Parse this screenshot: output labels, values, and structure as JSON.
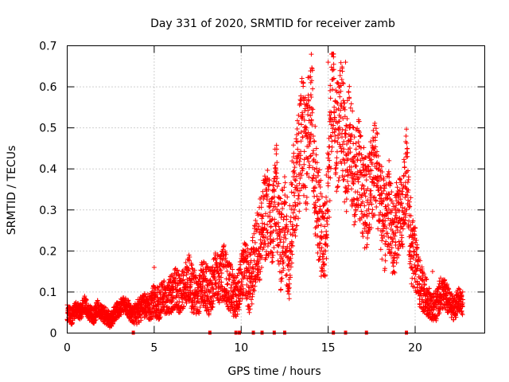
{
  "chart_data": {
    "type": "scatter",
    "title": "Day 331 of 2020, SRMTID for receiver zamb",
    "xlabel": "GPS time / hours",
    "ylabel": "SRMTID / TECUs",
    "xlim": [
      0,
      24
    ],
    "ylim": [
      0,
      0.7
    ],
    "xticks": [
      0,
      5,
      10,
      15,
      20
    ],
    "yticks": [
      0,
      0.1,
      0.2,
      0.3,
      0.4,
      0.5,
      0.6,
      0.7
    ],
    "xtick_labels": [
      "0",
      "5",
      "10",
      "15",
      "20"
    ],
    "ytick_labels": [
      "0",
      "0.1",
      "0.2",
      "0.3",
      "0.4",
      "0.5",
      "0.6",
      "0.7"
    ],
    "grid": true,
    "marker": "+",
    "color": "#ff0000",
    "series": [
      {
        "name": "SRMTID",
        "x": [
          0.0,
          0.25,
          0.5,
          0.75,
          1.0,
          1.25,
          1.5,
          1.75,
          2.0,
          2.25,
          2.5,
          2.75,
          3.0,
          3.25,
          3.5,
          3.75,
          4.0,
          4.25,
          4.5,
          4.75,
          5.0,
          5.25,
          5.5,
          5.75,
          6.0,
          6.25,
          6.5,
          6.75,
          7.0,
          7.25,
          7.5,
          7.75,
          8.0,
          8.25,
          8.5,
          8.75,
          9.0,
          9.25,
          9.5,
          9.75,
          10.0,
          10.25,
          10.5,
          10.75,
          11.0,
          11.25,
          11.5,
          11.75,
          12.0,
          12.25,
          12.5,
          12.75,
          13.0,
          13.25,
          13.5,
          13.75,
          14.0,
          14.25,
          14.5,
          14.75,
          15.0,
          15.25,
          15.5,
          15.75,
          16.0,
          16.25,
          16.5,
          16.75,
          17.0,
          17.25,
          17.5,
          17.75,
          18.0,
          18.25,
          18.5,
          18.75,
          19.0,
          19.25,
          19.5,
          19.75,
          20.0,
          20.25,
          20.5,
          20.75,
          21.0,
          21.25,
          21.5,
          21.75,
          22.0,
          22.25,
          22.5,
          22.75
        ],
        "y": [
          0.05,
          0.04,
          0.06,
          0.05,
          0.07,
          0.05,
          0.04,
          0.06,
          0.05,
          0.04,
          0.03,
          0.05,
          0.06,
          0.07,
          0.06,
          0.04,
          0.05,
          0.06,
          0.07,
          0.06,
          0.08,
          0.07,
          0.09,
          0.08,
          0.1,
          0.11,
          0.09,
          0.12,
          0.13,
          0.1,
          0.09,
          0.12,
          0.11,
          0.1,
          0.14,
          0.13,
          0.15,
          0.12,
          0.1,
          0.09,
          0.13,
          0.16,
          0.11,
          0.18,
          0.22,
          0.26,
          0.3,
          0.24,
          0.36,
          0.21,
          0.28,
          0.19,
          0.34,
          0.4,
          0.5,
          0.43,
          0.58,
          0.37,
          0.28,
          0.22,
          0.33,
          0.62,
          0.47,
          0.55,
          0.4,
          0.5,
          0.36,
          0.42,
          0.34,
          0.3,
          0.38,
          0.41,
          0.32,
          0.25,
          0.3,
          0.22,
          0.29,
          0.27,
          0.4,
          0.2,
          0.18,
          0.12,
          0.1,
          0.08,
          0.06,
          0.07,
          0.1,
          0.09,
          0.07,
          0.06,
          0.08,
          0.07
        ],
        "y_spread": [
          0.02,
          0.02,
          0.02,
          0.02,
          0.02,
          0.02,
          0.02,
          0.02,
          0.02,
          0.02,
          0.02,
          0.02,
          0.02,
          0.02,
          0.02,
          0.02,
          0.03,
          0.03,
          0.03,
          0.03,
          0.04,
          0.04,
          0.04,
          0.04,
          0.05,
          0.05,
          0.05,
          0.05,
          0.06,
          0.06,
          0.05,
          0.06,
          0.06,
          0.06,
          0.06,
          0.06,
          0.07,
          0.06,
          0.06,
          0.05,
          0.06,
          0.07,
          0.08,
          0.08,
          0.1,
          0.11,
          0.11,
          0.11,
          0.12,
          0.12,
          0.12,
          0.12,
          0.13,
          0.14,
          0.14,
          0.14,
          0.15,
          0.14,
          0.12,
          0.12,
          0.13,
          0.15,
          0.14,
          0.14,
          0.13,
          0.13,
          0.12,
          0.12,
          0.12,
          0.12,
          0.12,
          0.12,
          0.12,
          0.11,
          0.1,
          0.1,
          0.1,
          0.1,
          0.1,
          0.09,
          0.08,
          0.06,
          0.05,
          0.04,
          0.03,
          0.04,
          0.04,
          0.04,
          0.03,
          0.03,
          0.03,
          0.03
        ],
        "peak_marks": [
          {
            "x": 1.0,
            "y": 0.09
          },
          {
            "x": 3.5,
            "y": 0.08
          },
          {
            "x": 5.0,
            "y": 0.16
          },
          {
            "x": 7.0,
            "y": 0.19
          },
          {
            "x": 9.0,
            "y": 0.19
          },
          {
            "x": 11.0,
            "y": 0.2
          },
          {
            "x": 12.0,
            "y": 0.39
          },
          {
            "x": 13.5,
            "y": 0.57
          },
          {
            "x": 14.0,
            "y": 0.61
          },
          {
            "x": 15.0,
            "y": 0.66
          },
          {
            "x": 16.0,
            "y": 0.66
          },
          {
            "x": 16.75,
            "y": 0.52
          },
          {
            "x": 17.5,
            "y": 0.44
          },
          {
            "x": 18.5,
            "y": 0.42
          },
          {
            "x": 19.75,
            "y": 0.33
          },
          {
            "x": 21.0,
            "y": 0.15
          },
          {
            "x": 22.5,
            "y": 0.09
          }
        ]
      }
    ],
    "axis_marks_x": [
      3.8,
      8.2,
      9.7,
      9.9,
      10.7,
      11.2,
      11.9,
      12.5,
      15.3,
      16.0,
      17.2,
      19.5
    ]
  }
}
